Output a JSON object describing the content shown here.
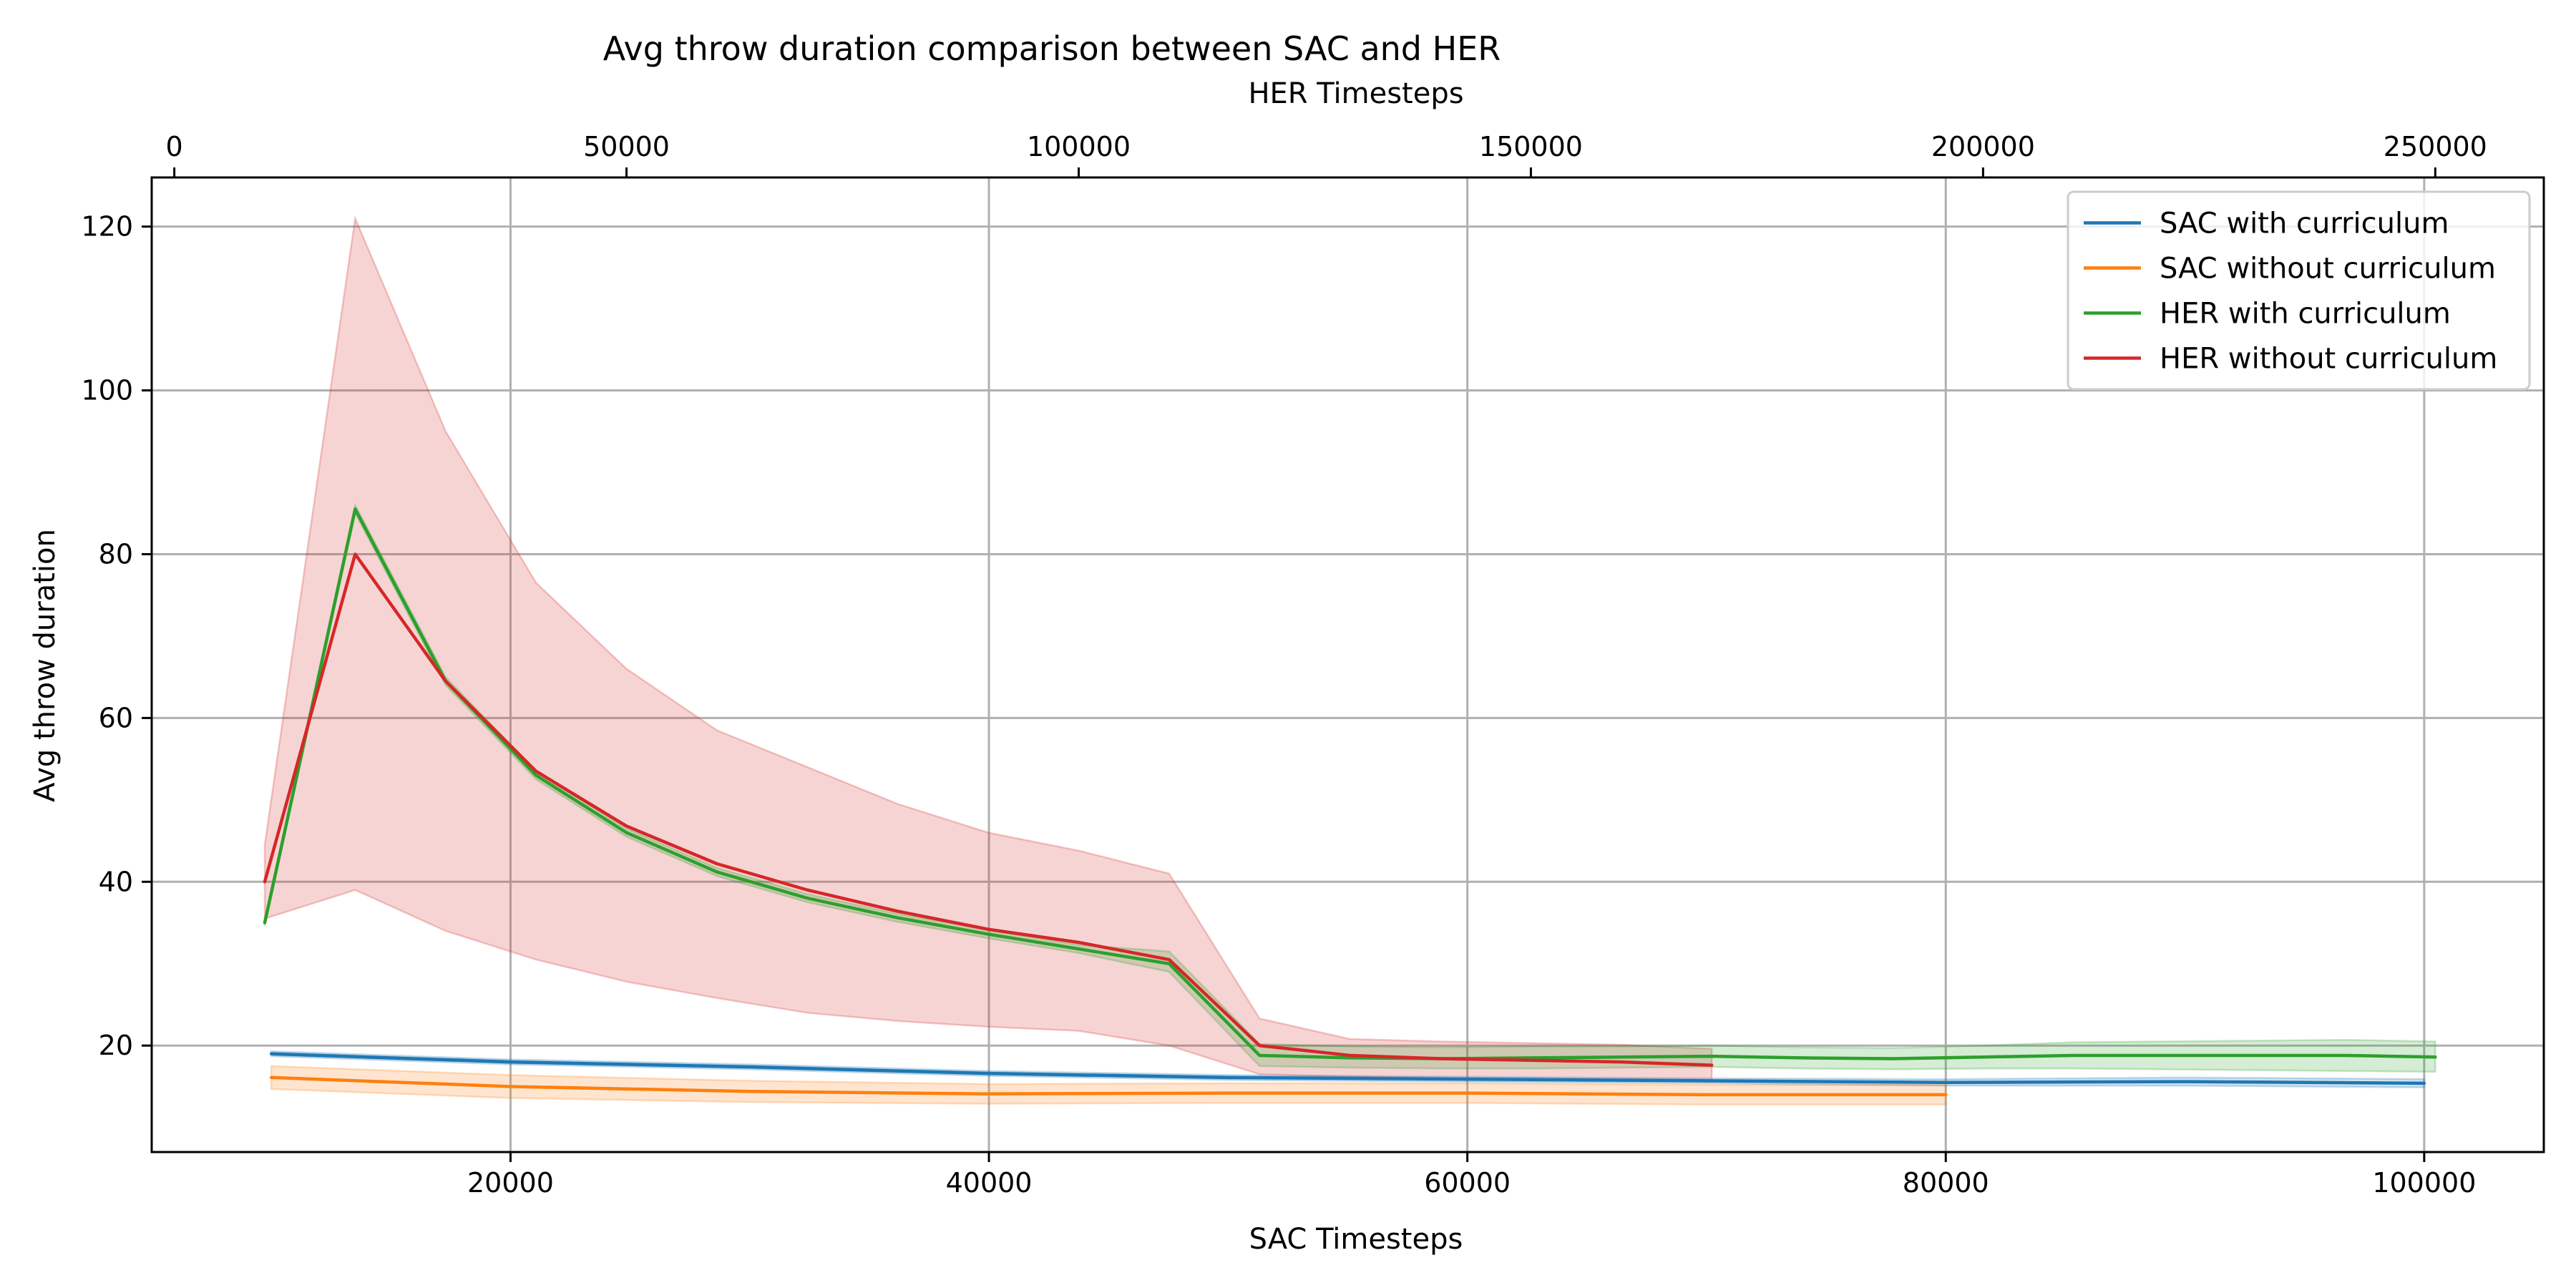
{
  "chart_data": {
    "type": "line",
    "title": "Avg throw duration comparison between SAC and HER",
    "xlabel": "SAC Timesteps",
    "x2label": "HER Timesteps",
    "ylabel": "Avg throw duration",
    "xlim": [
      5000,
      105000
    ],
    "x2lim": [
      -2500,
      262000
    ],
    "ylim": [
      7,
      126
    ],
    "xticks": [
      20000,
      40000,
      60000,
      80000,
      100000
    ],
    "x2ticks": [
      0,
      50000,
      100000,
      150000,
      200000,
      250000
    ],
    "yticks": [
      20,
      40,
      60,
      80,
      100,
      120
    ],
    "grid": true,
    "legend_position": "upper right",
    "series": [
      {
        "name": "SAC with curriculum",
        "axis": "bottom",
        "color": "#1f77b4",
        "x": [
          10000,
          20000,
          30000,
          40000,
          50000,
          60000,
          70000,
          80000,
          90000,
          100000
        ],
        "y": [
          19.0,
          18.0,
          17.4,
          16.6,
          16.1,
          15.9,
          15.7,
          15.5,
          15.6,
          15.4
        ],
        "lower": [
          18.7,
          17.7,
          17.1,
          16.3,
          15.8,
          15.6,
          15.4,
          15.1,
          15.1,
          14.9
        ],
        "upper": [
          19.3,
          18.3,
          17.7,
          16.9,
          16.4,
          16.2,
          16.0,
          15.9,
          16.1,
          15.9
        ]
      },
      {
        "name": "SAC without curriculum",
        "axis": "bottom",
        "color": "#ff7f0e",
        "x": [
          10000,
          20000,
          30000,
          40000,
          50000,
          60000,
          70000,
          80000
        ],
        "y": [
          16.1,
          15.0,
          14.4,
          14.1,
          14.2,
          14.2,
          14.0,
          14.0
        ],
        "lower": [
          14.7,
          13.6,
          13.1,
          12.9,
          13.0,
          13.0,
          12.8,
          12.8
        ],
        "upper": [
          17.5,
          16.4,
          15.7,
          15.3,
          15.4,
          15.4,
          15.2,
          15.2
        ]
      },
      {
        "name": "HER with curriculum",
        "axis": "top",
        "color": "#2ca02c",
        "x": [
          10000,
          20000,
          30000,
          40000,
          50000,
          60000,
          70000,
          80000,
          90000,
          100000,
          110000,
          120000,
          130000,
          140000,
          150000,
          160000,
          170000,
          180000,
          190000,
          200000,
          210000,
          220000,
          230000,
          240000,
          250000
        ],
        "y": [
          35.0,
          85.5,
          64.5,
          53.0,
          46.0,
          41.2,
          38.0,
          35.6,
          33.6,
          31.8,
          30.0,
          18.8,
          18.5,
          18.4,
          18.5,
          18.6,
          18.7,
          18.5,
          18.4,
          18.6,
          18.8,
          18.8,
          18.8,
          18.8,
          18.6
        ],
        "lower": [
          34.6,
          85.0,
          64.0,
          52.5,
          45.5,
          40.7,
          37.5,
          35.1,
          33.1,
          31.3,
          29.0,
          17.5,
          17.3,
          17.2,
          17.2,
          17.3,
          17.4,
          17.2,
          17.1,
          17.2,
          17.2,
          17.1,
          17.0,
          16.9,
          16.8
        ],
        "upper": [
          35.4,
          86.0,
          65.0,
          53.5,
          46.5,
          41.7,
          38.5,
          36.1,
          34.1,
          32.3,
          31.5,
          20.2,
          19.9,
          19.8,
          19.9,
          19.9,
          20.0,
          19.8,
          19.7,
          20.0,
          20.4,
          20.5,
          20.6,
          20.7,
          20.5
        ]
      },
      {
        "name": "HER without curriculum",
        "axis": "top",
        "color": "#d62728",
        "x": [
          10000,
          20000,
          30000,
          40000,
          50000,
          60000,
          70000,
          80000,
          90000,
          100000,
          110000,
          120000,
          130000,
          140000,
          150000,
          160000,
          170000
        ],
        "y": [
          40.0,
          80.0,
          64.5,
          53.5,
          46.8,
          42.2,
          39.0,
          36.4,
          34.2,
          32.6,
          30.5,
          20.0,
          18.8,
          18.4,
          18.2,
          18.0,
          17.6
        ],
        "lower": [
          35.5,
          39.0,
          34.0,
          30.5,
          27.8,
          25.8,
          24.0,
          23.0,
          22.3,
          21.8,
          20.0,
          16.5,
          16.2,
          16.0,
          15.9,
          15.8,
          15.6
        ],
        "upper": [
          44.5,
          121.0,
          95.0,
          76.5,
          66.0,
          58.5,
          54.0,
          49.5,
          46.0,
          43.8,
          41.0,
          23.3,
          20.8,
          20.5,
          20.3,
          20.1,
          19.6
        ]
      }
    ]
  }
}
